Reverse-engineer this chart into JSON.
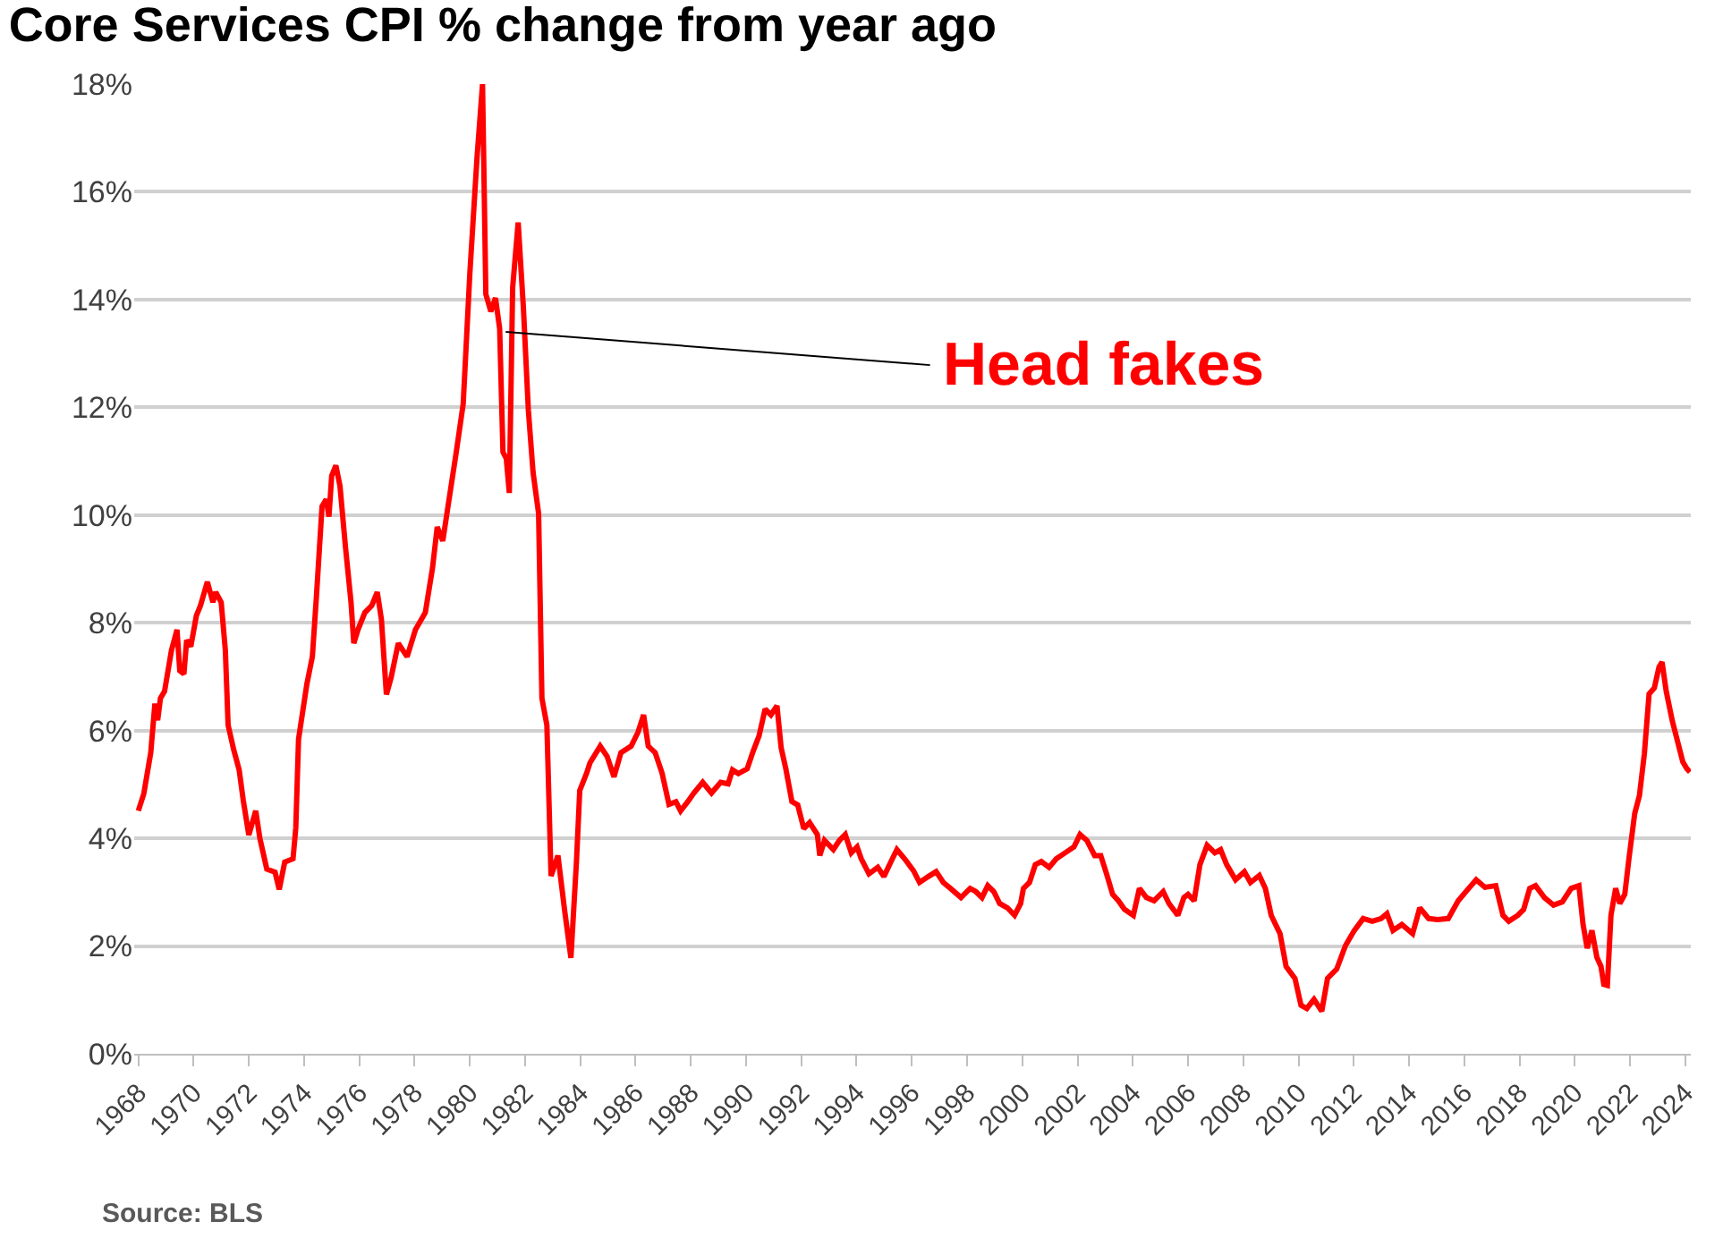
{
  "chart_data": {
    "type": "line",
    "title": "Core Services CPI % change from year ago",
    "annotations": [
      {
        "text": "Head fakes",
        "x": 1981.3,
        "y": 13.4
      },
      "Source: BLS"
    ],
    "series": [
      {
        "color": "#ff0000",
        "x": [
          1968.0,
          1968.2,
          1968.45,
          1968.6,
          1968.7,
          1968.8,
          1968.95,
          1969.2,
          1969.4,
          1969.5,
          1969.65,
          1969.75,
          1969.9,
          1970.1,
          1970.25,
          1970.5,
          1970.7,
          1970.8,
          1971.0,
          1971.15,
          1971.25,
          1971.45,
          1971.65,
          1971.8,
          1972.0,
          1972.25,
          1972.4,
          1972.65,
          1972.95,
          1973.1,
          1973.3,
          1973.6,
          1973.7,
          1973.8,
          1974.1,
          1974.3,
          1974.45,
          1974.65,
          1974.8,
          1974.9,
          1975.0,
          1975.15,
          1975.3,
          1975.5,
          1975.7,
          1975.8,
          1975.95,
          1976.2,
          1976.45,
          1976.65,
          1976.8,
          1976.98,
          1977.15,
          1977.41,
          1977.73,
          1978.03,
          1978.39,
          1978.65,
          1978.82,
          1979.02,
          1979.21,
          1979.51,
          1979.76,
          1980.0,
          1980.26,
          1980.46,
          1980.58,
          1980.76,
          1980.93,
          1981.08,
          1981.2,
          1981.32,
          1981.43,
          1981.55,
          1981.75,
          1981.94,
          1982.12,
          1982.29,
          1982.49,
          1982.61,
          1982.79,
          1982.94,
          1983.19,
          1983.43,
          1983.66,
          1983.86,
          1983.98,
          1984.23,
          1984.35,
          1984.72,
          1984.97,
          1985.22,
          1985.47,
          1985.84,
          1986.09,
          1986.29,
          1986.46,
          1986.71,
          1986.96,
          1987.21,
          1987.46,
          1987.63,
          1987.89,
          1988.11,
          1988.43,
          1988.75,
          1989.08,
          1989.35,
          1989.51,
          1989.72,
          1990.04,
          1990.26,
          1990.47,
          1990.69,
          1990.9,
          1991.12,
          1991.27,
          1991.44,
          1991.66,
          1991.87,
          1992.09,
          1992.3,
          1992.58,
          1992.67,
          1992.84,
          1993.16,
          1993.38,
          1993.59,
          1993.81,
          1994.02,
          1994.17,
          1994.45,
          1994.77,
          1994.99,
          1995.25,
          1995.46,
          1995.74,
          1996.06,
          1996.28,
          1996.6,
          1996.88,
          1997.14,
          1997.4,
          1997.78,
          1998.11,
          1998.32,
          1998.54,
          1998.75,
          1998.97,
          1999.18,
          1999.46,
          1999.72,
          1999.94,
          2000.04,
          2000.26,
          2000.47,
          2000.69,
          2000.97,
          2001.23,
          2001.55,
          2001.87,
          2002.09,
          2002.34,
          2002.62,
          2002.84,
          2003.05,
          2003.27,
          2003.48,
          2003.7,
          2004.02,
          2004.24,
          2004.49,
          2004.77,
          2005.1,
          2005.31,
          2005.63,
          2005.85,
          2006.0,
          2006.22,
          2006.43,
          2006.69,
          2006.97,
          2007.18,
          2007.4,
          2007.72,
          2008.04,
          2008.26,
          2008.58,
          2008.8,
          2009.01,
          2009.33,
          2009.55,
          2009.87,
          2010.09,
          2010.3,
          2010.56,
          2010.84,
          2011.05,
          2011.38,
          2011.7,
          2012.02,
          2012.34,
          2012.67,
          2012.99,
          2013.2,
          2013.42,
          2013.74,
          2014.13,
          2014.39,
          2014.71,
          2015.03,
          2015.42,
          2015.78,
          2016.11,
          2016.43,
          2016.75,
          2017.14,
          2017.4,
          2017.61,
          2017.94,
          2018.15,
          2018.37,
          2018.58,
          2018.9,
          2019.23,
          2019.55,
          2019.87,
          2020.15,
          2020.3,
          2020.45,
          2020.62,
          2020.8,
          2020.95,
          2021.05,
          2021.18,
          2021.31,
          2021.48,
          2021.63,
          2021.81,
          2021.96,
          2022.17,
          2022.34,
          2022.52,
          2022.69,
          2022.88,
          2023.05,
          2023.16,
          2023.31,
          2023.53,
          2023.7,
          2023.91,
          2024.06,
          2024.17
        ],
        "values": [
          4.51,
          4.83,
          5.59,
          6.5,
          6.19,
          6.6,
          6.73,
          7.49,
          7.87,
          7.11,
          7.05,
          7.68,
          7.56,
          8.13,
          8.32,
          8.76,
          8.38,
          8.57,
          8.38,
          7.49,
          6.1,
          5.65,
          5.27,
          4.7,
          4.06,
          4.51,
          4.0,
          3.43,
          3.37,
          3.05,
          3.56,
          3.62,
          4.19,
          5.84,
          6.86,
          7.37,
          8.51,
          10.16,
          10.29,
          9.97,
          10.73,
          10.92,
          10.54,
          9.4,
          8.38,
          7.62,
          7.87,
          8.19,
          8.32,
          8.57,
          8.06,
          6.67,
          6.98,
          7.62,
          7.37,
          7.87,
          8.19,
          9.02,
          9.78,
          9.52,
          10.16,
          11.17,
          12.06,
          14.48,
          16.63,
          18.0,
          14.1,
          13.78,
          14.03,
          13.46,
          11.17,
          11.05,
          10.41,
          14.22,
          15.43,
          13.84,
          11.94,
          10.79,
          10.03,
          6.6,
          6.1,
          3.3,
          3.68,
          2.67,
          1.78,
          3.56,
          4.89,
          5.21,
          5.4,
          5.71,
          5.52,
          5.14,
          5.59,
          5.71,
          5.97,
          6.29,
          5.71,
          5.59,
          5.21,
          4.63,
          4.68,
          4.51,
          4.68,
          4.84,
          5.04,
          4.84,
          5.04,
          5.01,
          5.27,
          5.2,
          5.29,
          5.62,
          5.9,
          6.4,
          6.29,
          6.46,
          5.68,
          5.29,
          4.68,
          4.62,
          4.18,
          4.29,
          4.07,
          3.68,
          3.96,
          3.79,
          3.96,
          4.07,
          3.73,
          3.84,
          3.62,
          3.34,
          3.46,
          3.29,
          3.57,
          3.79,
          3.62,
          3.4,
          3.18,
          3.29,
          3.38,
          3.18,
          3.07,
          2.9,
          3.07,
          3.01,
          2.9,
          3.12,
          3.01,
          2.79,
          2.71,
          2.57,
          2.79,
          3.07,
          3.18,
          3.51,
          3.57,
          3.46,
          3.62,
          3.73,
          3.84,
          4.07,
          3.96,
          3.68,
          3.68,
          3.34,
          2.96,
          2.84,
          2.68,
          2.57,
          3.07,
          2.9,
          2.84,
          3.01,
          2.79,
          2.57,
          2.9,
          2.96,
          2.84,
          3.51,
          3.87,
          3.73,
          3.79,
          3.51,
          3.23,
          3.38,
          3.18,
          3.31,
          3.07,
          2.57,
          2.23,
          1.62,
          1.4,
          0.9,
          0.84,
          1.01,
          0.79,
          1.4,
          1.57,
          2.01,
          2.29,
          2.51,
          2.46,
          2.51,
          2.6,
          2.29,
          2.4,
          2.23,
          2.71,
          2.51,
          2.49,
          2.51,
          2.84,
          3.04,
          3.23,
          3.09,
          3.12,
          2.57,
          2.46,
          2.57,
          2.68,
          3.07,
          3.12,
          2.9,
          2.76,
          2.82,
          3.07,
          3.12,
          2.4,
          1.96,
          2.29,
          1.79,
          1.62,
          1.29,
          1.27,
          2.57,
          3.07,
          2.79,
          2.96,
          3.62,
          4.46,
          4.79,
          5.57,
          6.68,
          6.79,
          7.18,
          7.27,
          6.73,
          6.18,
          5.84,
          5.42,
          5.29,
          5.23
        ]
      }
    ],
    "xlim": [
      1967.85,
      2024.2
    ],
    "xticks": [
      1968,
      1970,
      1972,
      1974,
      1976,
      1978,
      1980,
      1982,
      1984,
      1986,
      1988,
      1990,
      1992,
      1994,
      1996,
      1998,
      2000,
      2002,
      2004,
      2006,
      2008,
      2010,
      2012,
      2014,
      2016,
      2018,
      2020,
      2022,
      2024
    ],
    "ylim": [
      0,
      18
    ],
    "yticks": [
      {
        "value": 0,
        "label": "0%"
      },
      {
        "value": 2,
        "label": "2%"
      },
      {
        "value": 4,
        "label": "4%"
      },
      {
        "value": 6,
        "label": "6%"
      },
      {
        "value": 8,
        "label": "8%"
      },
      {
        "value": 10,
        "label": "10%"
      },
      {
        "value": 12,
        "label": "12%"
      },
      {
        "value": 14,
        "label": "14%"
      },
      {
        "value": 16,
        "label": "16%"
      },
      {
        "value": 18,
        "label": "18%"
      }
    ],
    "grid": "y",
    "marker": "none",
    "line_style": "solid"
  }
}
